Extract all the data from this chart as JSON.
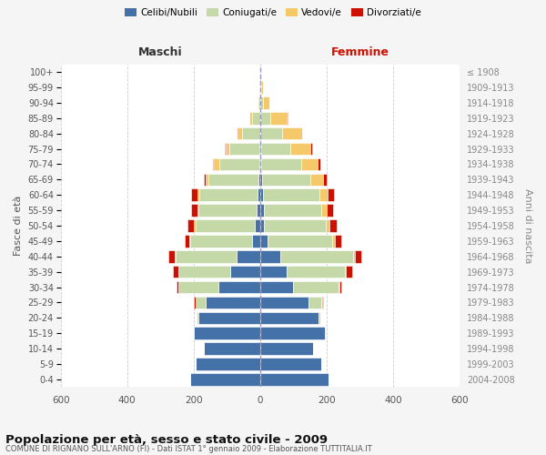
{
  "age_groups": [
    "0-4",
    "5-9",
    "10-14",
    "15-19",
    "20-24",
    "25-29",
    "30-34",
    "35-39",
    "40-44",
    "45-49",
    "50-54",
    "55-59",
    "60-64",
    "65-69",
    "70-74",
    "75-79",
    "80-84",
    "85-89",
    "90-94",
    "95-99",
    "100+"
  ],
  "birth_years": [
    "2004-2008",
    "1999-2003",
    "1994-1998",
    "1989-1993",
    "1984-1988",
    "1979-1983",
    "1974-1978",
    "1969-1973",
    "1964-1968",
    "1959-1963",
    "1954-1958",
    "1949-1953",
    "1944-1948",
    "1939-1943",
    "1934-1938",
    "1929-1933",
    "1924-1928",
    "1919-1923",
    "1914-1918",
    "1909-1913",
    "≤ 1908"
  ],
  "male": {
    "celibi": [
      210,
      195,
      170,
      200,
      185,
      165,
      125,
      90,
      70,
      25,
      15,
      10,
      8,
      5,
      3,
      2,
      0,
      0,
      0,
      0,
      0
    ],
    "coniugati": [
      0,
      0,
      0,
      2,
      5,
      30,
      120,
      155,
      185,
      185,
      180,
      175,
      175,
      150,
      120,
      90,
      55,
      25,
      5,
      2,
      1
    ],
    "vedovi": [
      0,
      0,
      0,
      0,
      0,
      0,
      2,
      2,
      2,
      2,
      3,
      3,
      5,
      10,
      15,
      12,
      15,
      8,
      2,
      0,
      0
    ],
    "divorziati": [
      0,
      0,
      0,
      0,
      2,
      3,
      5,
      15,
      20,
      15,
      20,
      20,
      20,
      5,
      5,
      2,
      2,
      0,
      0,
      0,
      0
    ]
  },
  "female": {
    "nubili": [
      205,
      185,
      160,
      195,
      175,
      145,
      100,
      80,
      60,
      22,
      12,
      10,
      8,
      5,
      3,
      2,
      0,
      0,
      0,
      0,
      0
    ],
    "coniugate": [
      0,
      0,
      0,
      2,
      5,
      40,
      135,
      175,
      220,
      195,
      185,
      175,
      170,
      145,
      120,
      90,
      65,
      30,
      8,
      3,
      2
    ],
    "vedove": [
      0,
      0,
      0,
      0,
      0,
      2,
      3,
      3,
      5,
      8,
      10,
      15,
      25,
      40,
      50,
      60,
      60,
      50,
      20,
      5,
      2
    ],
    "divorziate": [
      0,
      0,
      0,
      0,
      2,
      3,
      5,
      18,
      20,
      20,
      22,
      20,
      20,
      10,
      8,
      5,
      2,
      2,
      0,
      0,
      0
    ]
  },
  "colors": {
    "celibi": "#4472a8",
    "coniugati": "#c5d9a8",
    "vedovi": "#f5c96a",
    "divorziati": "#cc1100"
  },
  "title": "Popolazione per età, sesso e stato civile - 2009",
  "subtitle": "COMUNE DI RIGNANO SULL'ARNO (FI) - Dati ISTAT 1° gennaio 2009 - Elaborazione TUTTITALIA.IT",
  "xlabel_left": "Maschi",
  "xlabel_right": "Femmine",
  "ylabel_left": "Fasce di età",
  "ylabel_right": "Anni di nascita",
  "xlim": 600,
  "background_color": "#f5f5f5",
  "plot_background": "#ffffff"
}
